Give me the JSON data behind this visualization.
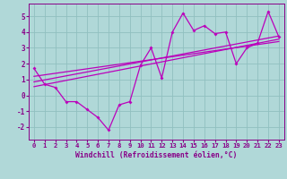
{
  "x": [
    0,
    1,
    2,
    3,
    4,
    5,
    6,
    7,
    8,
    9,
    10,
    11,
    12,
    13,
    14,
    15,
    16,
    17,
    18,
    19,
    20,
    21,
    22,
    23
  ],
  "y": [
    1.7,
    0.7,
    0.5,
    -0.4,
    -0.4,
    -0.9,
    -1.4,
    -2.2,
    -0.6,
    -0.4,
    1.9,
    3.0,
    1.1,
    4.0,
    5.2,
    4.1,
    4.4,
    3.9,
    4.0,
    2.0,
    3.0,
    3.3,
    5.3,
    3.7
  ],
  "line_color": "#bb00bb",
  "bg_color": "#b0d8d8",
  "grid_color": "#90c0c0",
  "xlabel": "Windchill (Refroidissement éolien,°C)",
  "ylim": [
    -2.8,
    5.8
  ],
  "xlim": [
    -0.5,
    23.5
  ],
  "yticks": [
    -2,
    -1,
    0,
    1,
    2,
    3,
    4,
    5
  ],
  "xticks": [
    0,
    1,
    2,
    3,
    4,
    5,
    6,
    7,
    8,
    9,
    10,
    11,
    12,
    13,
    14,
    15,
    16,
    17,
    18,
    19,
    20,
    21,
    22,
    23
  ],
  "regression_lines": [
    {
      "x0": 0,
      "y0": 0.55,
      "x1": 23,
      "y1": 3.55
    },
    {
      "x0": 0,
      "y0": 0.85,
      "x1": 23,
      "y1": 3.75
    },
    {
      "x0": 0,
      "y0": 1.2,
      "x1": 23,
      "y1": 3.4
    }
  ],
  "xlabel_color": "#880088",
  "tick_color": "#880088",
  "spine_color": "#880088"
}
